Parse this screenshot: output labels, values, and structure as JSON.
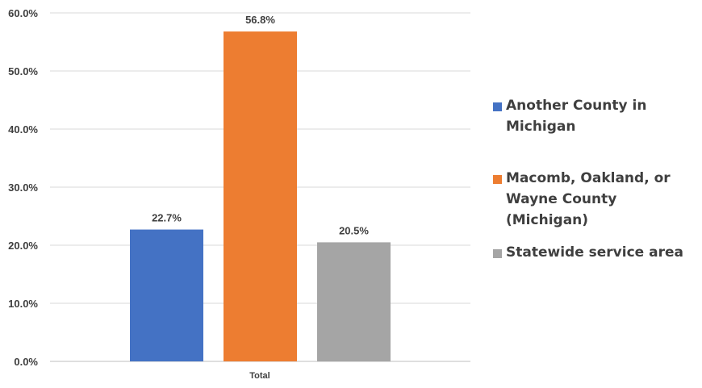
{
  "chart_data": {
    "type": "bar",
    "categories": [
      "Total"
    ],
    "series": [
      {
        "name": "Another County in Michigan",
        "values": [
          22.7
        ],
        "color": "#4472C4",
        "label": "22.7%"
      },
      {
        "name": "Macomb, Oakland, or Wayne County (Michigan)",
        "values": [
          56.8
        ],
        "color": "#ED7D31",
        "label": "56.8%"
      },
      {
        "name": "Statewide service area",
        "values": [
          20.5
        ],
        "color": "#A5A5A5",
        "label": "20.5%"
      }
    ],
    "yticks": [
      "0.0%",
      "10.0%",
      "20.0%",
      "30.0%",
      "40.0%",
      "50.0%",
      "60.0%"
    ],
    "ylim": [
      0,
      60
    ],
    "grid": true,
    "legend_position": "right"
  }
}
